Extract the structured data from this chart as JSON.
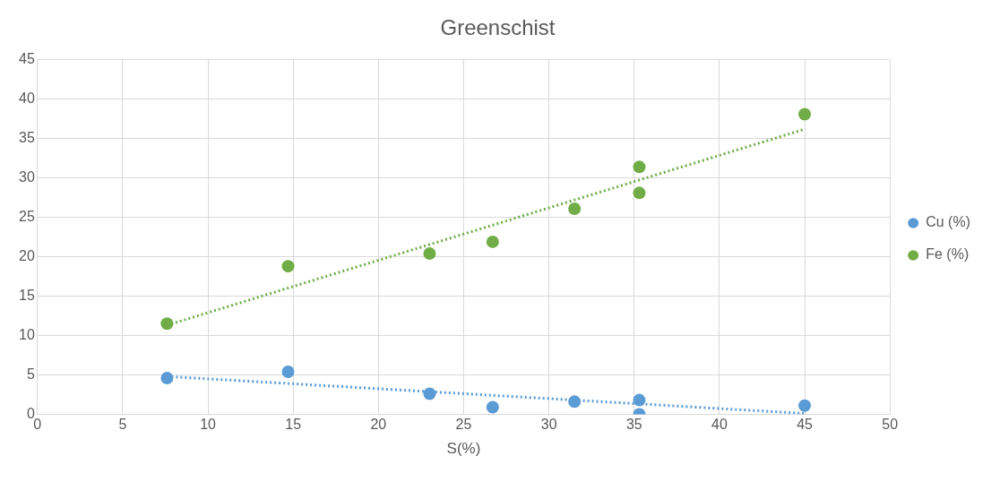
{
  "chart_data": {
    "type": "scatter",
    "title": "Greenschist",
    "xlabel": "S(%)",
    "xlim": [
      0,
      50
    ],
    "xticks": [
      0,
      5,
      10,
      15,
      20,
      25,
      30,
      35,
      40,
      45,
      50
    ],
    "ylim": [
      0,
      45
    ],
    "yticks": [
      0,
      5,
      10,
      15,
      20,
      25,
      30,
      35,
      40,
      45
    ],
    "grid": true,
    "legend": "right",
    "marker": "circle",
    "series": [
      {
        "name": "Cu (%)",
        "color": "#5b9bd5",
        "x": [
          7.6,
          14.7,
          23,
          26.7,
          31.5,
          35.3,
          35.3,
          45
        ],
        "values": [
          4.6,
          5.4,
          2.6,
          0.9,
          1.6,
          1.8,
          0,
          1.1
        ]
      },
      {
        "name": "Fe (%)",
        "color": "#70ad47",
        "x": [
          7.6,
          14.7,
          23,
          26.7,
          31.5,
          35.3,
          35.3,
          45
        ],
        "values": [
          11.5,
          18.8,
          20.4,
          21.9,
          26.1,
          31.4,
          28.1,
          38.1
        ]
      },
      {
        "type": "line",
        "color": "#5b9bd5",
        "line_style": "dotted",
        "marker": "none",
        "x": [
          7.6,
          45
        ],
        "values": [
          4.8,
          0.1
        ]
      },
      {
        "type": "line",
        "color": "#70ad47",
        "line_style": "dotted",
        "marker": "none",
        "x": [
          7.6,
          45
        ],
        "values": [
          11.3,
          36.2
        ]
      }
    ]
  }
}
